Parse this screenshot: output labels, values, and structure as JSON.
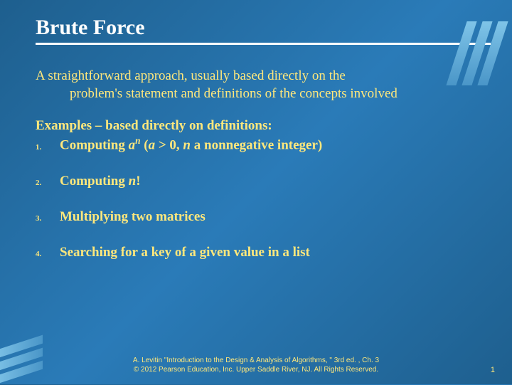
{
  "colors": {
    "background_gradient": [
      "#1e5f8e",
      "#2a7bb8",
      "#1e5f8e"
    ],
    "text_title": "#ffffff",
    "text_body": "#ffe87c",
    "decoration": [
      "#7fc4e8",
      "#4a96c8"
    ]
  },
  "fonts": {
    "title_size_pt": 30,
    "body_size_pt": 19,
    "list_number_size_pt": 11,
    "footer_size_pt": 10,
    "family_body": "Georgia, serif",
    "family_footer": "Arial, sans-serif"
  },
  "title": "Brute Force",
  "definition": {
    "line1": "A straightforward approach, usually based directly on the",
    "line2": "problem's statement and definitions of the concepts involved"
  },
  "examples_heading": "Examples – based directly on definitions:",
  "items": [
    {
      "num": "1.",
      "html": "Computing <i>a</i><sup><i>n</i></sup> (<i>a</i> > 0, <i>n</i> a nonnegative integer)"
    },
    {
      "num": "2.",
      "html": "Computing <i>n</i>!"
    },
    {
      "num": "3.",
      "html": "Multiplying two matrices"
    },
    {
      "num": "4.",
      "html": "Searching for a key of a given value in a list"
    }
  ],
  "footer": {
    "line1": "A. Levitin \"Introduction to the Design & Analysis of Algorithms, \" 3rd ed. , Ch. 3",
    "line2": "© 2012 Pearson Education, Inc. Upper Saddle River, NJ. All Rights Reserved."
  },
  "page_number": "1"
}
